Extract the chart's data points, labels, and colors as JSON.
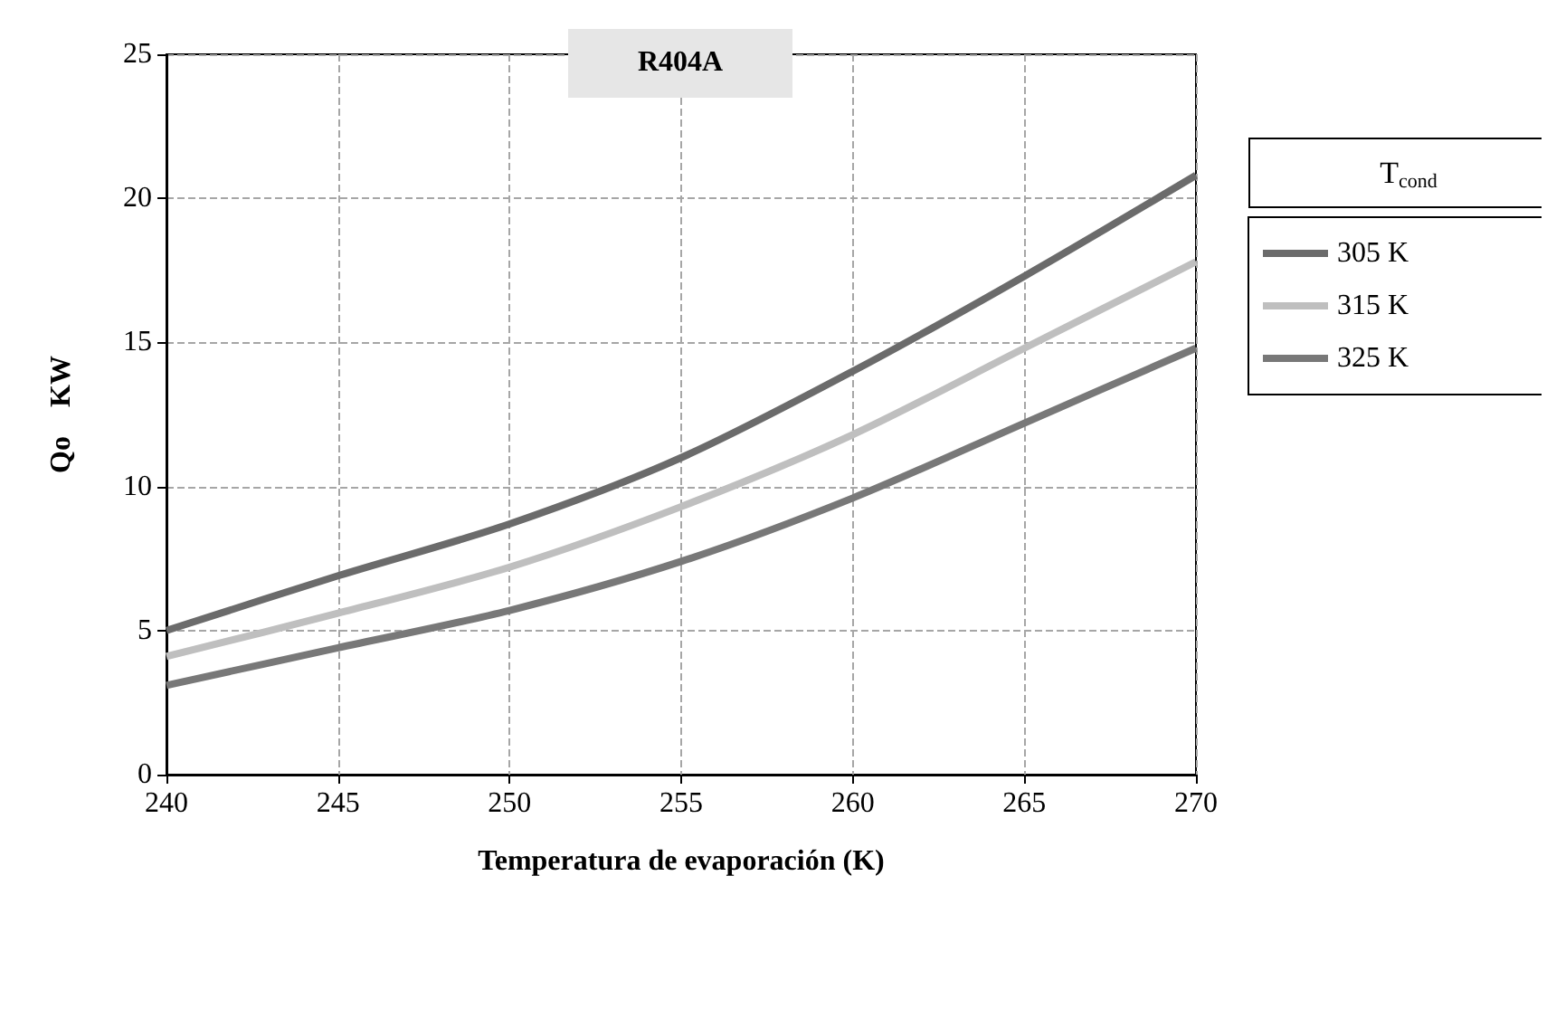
{
  "chart_data": {
    "type": "line",
    "title": "R404A",
    "xlabel": "Temperatura de evaporación (K)",
    "ylabel": "Qo    KW",
    "legend_title": "T$_{cond}$",
    "x": [
      240,
      245,
      250,
      255,
      260,
      265,
      270
    ],
    "series": [
      {
        "name": "305 K",
        "color": "#6b6b6b",
        "values": [
          5.0,
          6.9,
          8.7,
          11.0,
          14.0,
          17.3,
          20.8
        ]
      },
      {
        "name": "315 K",
        "color": "#bfbfbf",
        "values": [
          4.1,
          5.6,
          7.2,
          9.3,
          11.8,
          14.8,
          17.8
        ]
      },
      {
        "name": "325 K",
        "color": "#787878",
        "values": [
          3.1,
          4.4,
          5.7,
          7.4,
          9.6,
          12.2,
          14.8
        ]
      }
    ],
    "xlim": [
      240,
      270
    ],
    "xticks": [
      240,
      245,
      250,
      255,
      260,
      265,
      270
    ],
    "ylim": [
      0,
      25
    ],
    "yticks": [
      0,
      5,
      10,
      15,
      20,
      25
    ],
    "grid": true,
    "legend": "right",
    "marker": "none",
    "line_style": "solid"
  }
}
